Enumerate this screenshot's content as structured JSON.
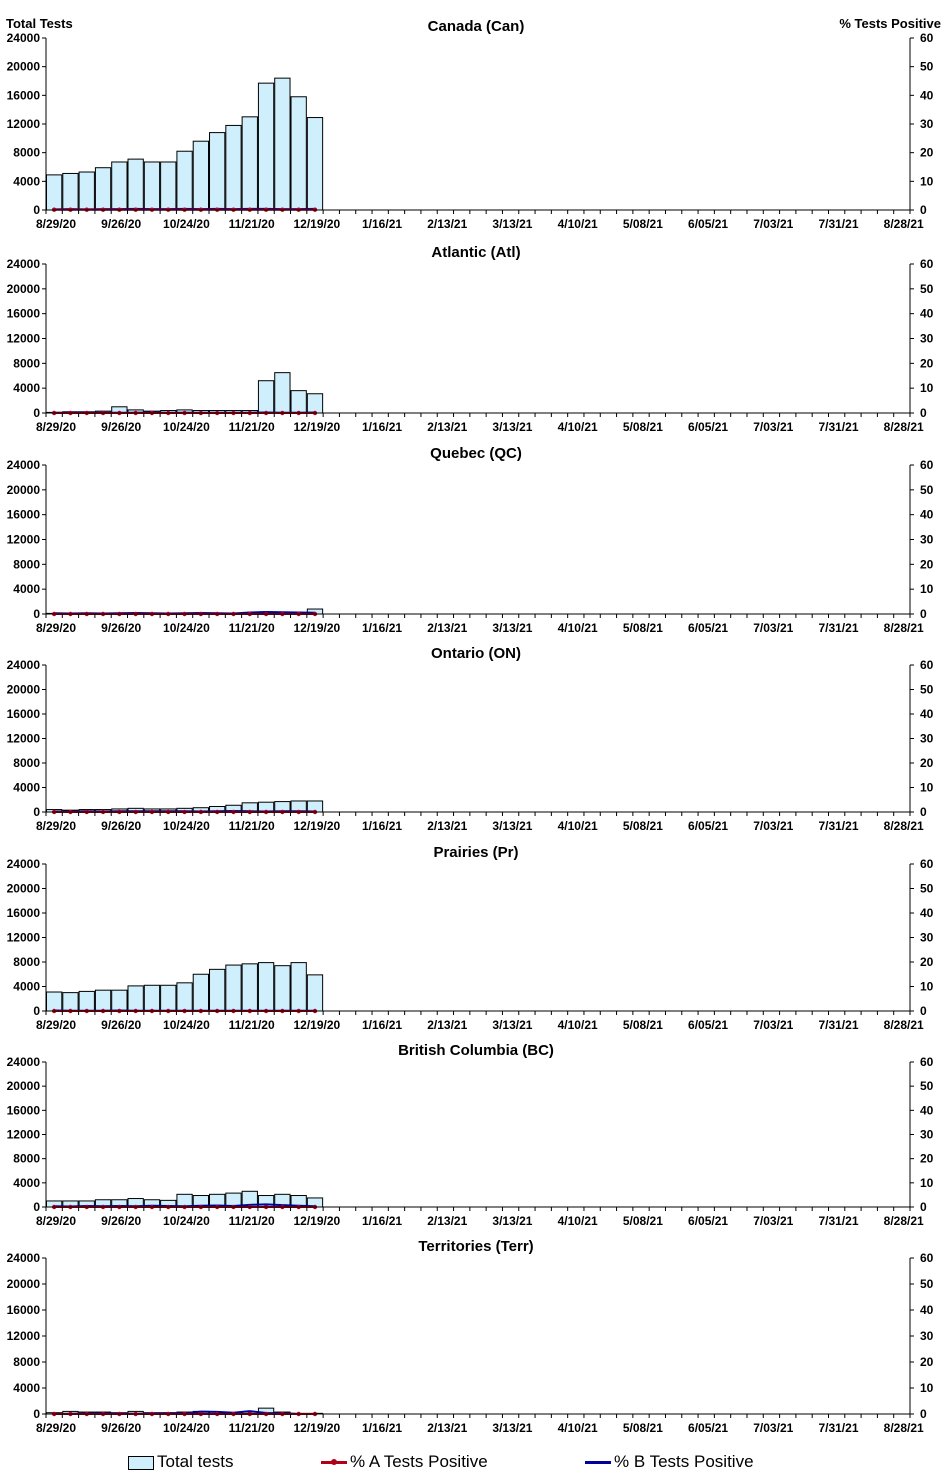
{
  "chart_data": {
    "type": "bar",
    "left_axis_title": "Total Tests",
    "right_axis_title": "% Tests Positive",
    "x_tick_labels": [
      "8/29/20",
      "9/26/20",
      "10/24/20",
      "11/21/20",
      "12/19/20",
      "1/16/21",
      "2/13/21",
      "3/13/21",
      "4/10/21",
      "5/08/21",
      "6/05/21",
      "7/03/21",
      "7/31/21",
      "8/28/21"
    ],
    "left_ylim": [
      0,
      24000
    ],
    "left_yticks": [
      0,
      4000,
      8000,
      12000,
      16000,
      20000,
      24000
    ],
    "right_ylim": [
      0,
      60
    ],
    "right_yticks": [
      0,
      10,
      20,
      30,
      40,
      50,
      60
    ],
    "week_count": 53,
    "panels": [
      {
        "title": "Canada (Can)",
        "total_tests": [
          4900,
          5100,
          5300,
          5900,
          6700,
          7100,
          6700,
          6700,
          8200,
          9600,
          10800,
          11800,
          13000,
          17700,
          18400,
          15800,
          12900
        ],
        "pct_a": [
          0.1,
          0.1,
          0.1,
          0.1,
          0.1,
          0.1,
          0.1,
          0.1,
          0.1,
          0.1,
          0.1,
          0.1,
          0.1,
          0.1,
          0.1,
          0.1,
          0.1
        ],
        "pct_b": [
          0.2,
          0.3,
          0.2,
          0.3,
          0.3,
          0.4,
          0.3,
          0.3,
          0.4,
          0.3,
          0.4,
          0.3,
          0.4,
          0.4,
          0.3,
          0.3,
          0.4
        ]
      },
      {
        "title": "Atlantic (Atl)",
        "total_tests": [
          100,
          200,
          200,
          300,
          1000,
          500,
          300,
          400,
          500,
          400,
          400,
          400,
          400,
          5200,
          6500,
          3600,
          3100
        ],
        "pct_a": [
          0,
          0,
          0,
          0,
          0,
          0,
          0,
          0,
          0,
          0,
          0,
          0,
          0,
          0,
          0,
          0,
          0
        ],
        "pct_b": [
          0.1,
          0.1,
          0.2,
          0.1,
          0.1,
          0.1,
          0.2,
          0.1,
          0.1,
          0.1,
          0.1,
          0.1,
          0.1,
          0.2,
          0.1,
          0.1,
          0.2
        ]
      },
      {
        "title": "Quebec (QC)",
        "total_tests": [
          100,
          100,
          100,
          100,
          100,
          100,
          100,
          100,
          100,
          100,
          100,
          100,
          100,
          100,
          100,
          200,
          800
        ],
        "pct_a": [
          0,
          0,
          0,
          0,
          0,
          0,
          0,
          0,
          0,
          0,
          0,
          0,
          0,
          0,
          0,
          0,
          0
        ],
        "pct_b": [
          0.3,
          0.2,
          0.3,
          0.2,
          0.3,
          0.4,
          0.3,
          0.2,
          0.3,
          0.4,
          0.3,
          0.2,
          0.6,
          0.8,
          0.7,
          0.6,
          0.5
        ]
      },
      {
        "title": "Ontario (ON)",
        "total_tests": [
          400,
          300,
          400,
          400,
          500,
          600,
          500,
          500,
          600,
          700,
          900,
          1100,
          1500,
          1600,
          1700,
          1800,
          1800
        ],
        "pct_a": [
          0,
          0,
          0,
          0,
          0,
          0,
          0,
          0,
          0,
          0,
          0,
          0,
          0,
          0,
          0,
          0,
          0
        ],
        "pct_b": [
          0.2,
          0.2,
          0.3,
          0.2,
          0.3,
          0.3,
          0.3,
          0.3,
          0.3,
          0.2,
          0.3,
          0.4,
          0.3,
          0.2,
          0.3,
          0.3,
          0.2
        ]
      },
      {
        "title": "Prairies (Pr)",
        "total_tests": [
          3100,
          3000,
          3200,
          3400,
          3400,
          4100,
          4200,
          4200,
          4600,
          6000,
          6800,
          7500,
          7700,
          7900,
          7400,
          7900,
          5900
        ],
        "pct_a": [
          0,
          0,
          0,
          0,
          0,
          0,
          0,
          0,
          0,
          0,
          0,
          0,
          0,
          0,
          0,
          0,
          0
        ],
        "pct_b": [
          0.2,
          0.1,
          0.1,
          0.1,
          0.2,
          0.1,
          0.1,
          0.1,
          0.1,
          0.1,
          0.1,
          0.1,
          0.1,
          0.1,
          0.1,
          0.1,
          0.1
        ]
      },
      {
        "title": "British Columbia (BC)",
        "total_tests": [
          1000,
          1000,
          1000,
          1200,
          1200,
          1400,
          1200,
          1100,
          2100,
          1900,
          2100,
          2300,
          2600,
          1900,
          2100,
          1900,
          1500
        ],
        "pct_a": [
          0,
          0,
          0,
          0,
          0,
          0,
          0,
          0,
          0,
          0,
          0,
          0,
          0,
          0,
          0,
          0,
          0
        ],
        "pct_b": [
          0.3,
          0.2,
          0.4,
          0.3,
          0.4,
          0.3,
          0.5,
          0.4,
          0.3,
          0.5,
          0.6,
          0.4,
          0.9,
          1.1,
          0.8,
          0.5,
          0.3
        ]
      },
      {
        "title": "Territories (Terr)",
        "total_tests": [
          200,
          400,
          300,
          300,
          200,
          400,
          200,
          200,
          300,
          400,
          300,
          200,
          300,
          900,
          300,
          100,
          100
        ],
        "pct_a": [
          0,
          0,
          0,
          0,
          0,
          0,
          0,
          0,
          0,
          0,
          0,
          0,
          0,
          0,
          0,
          0,
          0
        ],
        "pct_b": [
          0,
          0.1,
          0.2,
          0.3,
          0.2,
          0.1,
          0.2,
          0.3,
          0.3,
          0.9,
          0.8,
          0.5,
          1.1,
          0.4,
          0.3,
          0,
          0
        ]
      }
    ]
  },
  "legend": {
    "total_label": "Total tests",
    "a_label": "% A Tests Positive",
    "b_label": "% B Tests Positive"
  },
  "colors": {
    "bar_fill": "#cfeffc",
    "bar_stroke": "#000000",
    "a_line": "#b0001a",
    "b_line": "#00009c"
  }
}
